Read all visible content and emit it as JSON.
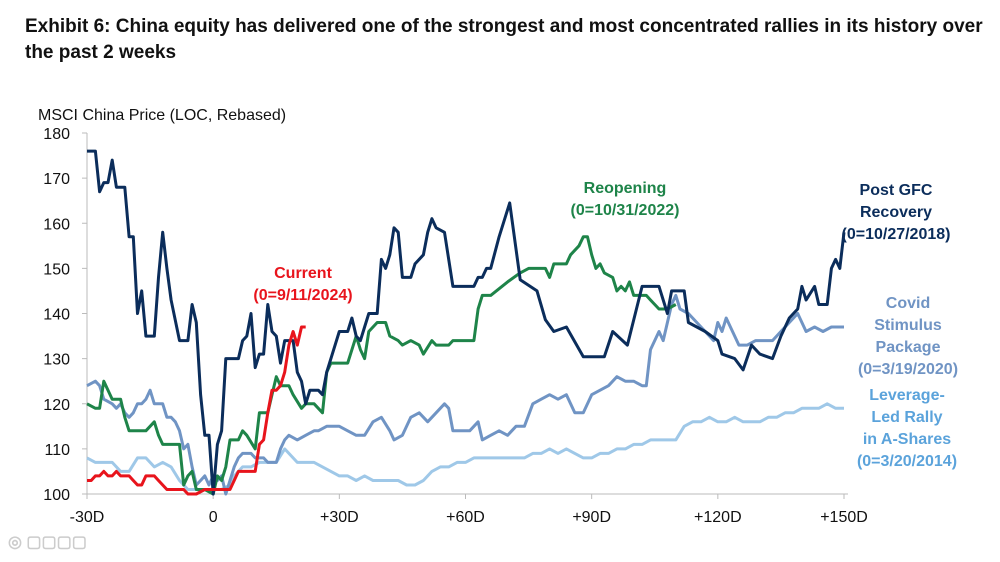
{
  "watermark": "大数跨境",
  "chart_data": {
    "type": "line",
    "title": "Exhibit 6: China equity has delivered one of the strongest and most concentrated rallies in its history over the past 2 weeks",
    "ylabel": "MSCI China Price (LOC, Rebased)",
    "xlabel": "",
    "xlim": [
      -30,
      150
    ],
    "ylim": [
      100,
      180
    ],
    "xticks": [
      -30,
      0,
      30,
      60,
      90,
      120,
      150
    ],
    "xtick_labels": [
      "-30D",
      "0",
      "+30D",
      "+60D",
      "+90D",
      "+120D",
      "+150D"
    ],
    "yticks": [
      100,
      110,
      120,
      130,
      140,
      150,
      160,
      170,
      180
    ],
    "grid": false,
    "series": [
      {
        "name": "Leverage-Led Rally in A-Shares",
        "label_lines": [
          "Leverage-",
          "Led Rally",
          "in A-Shares",
          "(0=3/20/2014)"
        ],
        "color": "#9fc8e8",
        "x": [
          -30,
          -28,
          -26,
          -24,
          -22,
          -20,
          -18,
          -16,
          -14,
          -12,
          -10,
          -8,
          -6,
          -4,
          -2,
          0,
          2,
          4,
          5,
          7,
          9,
          11,
          13,
          15,
          17,
          18,
          20,
          22,
          24,
          26,
          28,
          30,
          32,
          34,
          36,
          38,
          40,
          42,
          44,
          46,
          48,
          50,
          52,
          54,
          56,
          58,
          60,
          62,
          64,
          66,
          68,
          70,
          72,
          74,
          76,
          78,
          80,
          82,
          84,
          86,
          88,
          90,
          92,
          94,
          96,
          98,
          100,
          102,
          104,
          106,
          108,
          110,
          112,
          114,
          116,
          118,
          120,
          122,
          124,
          126,
          128,
          130,
          132,
          134,
          136,
          138,
          140,
          142,
          144,
          146,
          148,
          150
        ],
        "y": [
          108,
          107,
          107,
          107,
          105,
          105,
          108,
          108,
          106,
          107,
          106,
          103,
          101,
          101,
          101,
          101,
          101,
          102,
          104,
          106,
          106,
          107,
          107,
          107,
          110,
          109,
          107,
          107,
          107,
          106,
          105,
          104,
          104,
          103,
          104,
          103,
          103,
          103,
          103,
          102,
          102,
          103,
          105,
          106,
          106,
          107,
          107,
          108,
          108,
          108,
          108,
          108,
          108,
          108,
          109,
          109,
          110,
          109,
          110,
          109,
          108,
          108,
          109,
          109,
          110,
          110,
          111,
          111,
          112,
          112,
          112,
          112,
          115,
          116,
          116,
          117,
          116,
          116,
          117,
          116,
          116,
          116,
          117,
          117,
          118,
          118,
          119,
          119,
          119,
          120,
          119,
          119
        ]
      },
      {
        "name": "Covid Stimulus Package",
        "label_lines": [
          "Covid",
          "Stimulus",
          "Package",
          "(0=3/19/2020)"
        ],
        "color": "#7094c4",
        "x": [
          -30,
          -28,
          -27,
          -26,
          -24,
          -23,
          -22,
          -21,
          -20,
          -19,
          -18,
          -17,
          -16,
          -15,
          -14,
          -12,
          -11,
          -10,
          -9,
          -8,
          -7,
          -6,
          -5,
          -4,
          -3,
          -2,
          -1,
          0,
          1,
          2,
          3,
          4,
          5,
          6,
          7,
          9,
          10,
          11,
          12,
          13,
          15,
          16,
          17,
          18,
          20,
          22,
          24,
          25,
          27,
          30,
          32,
          34,
          36,
          38,
          40,
          42,
          43,
          45,
          47,
          49,
          51,
          53,
          55,
          56,
          57,
          59,
          61,
          63,
          64,
          66,
          68,
          70,
          72,
          74,
          76,
          78,
          80,
          82,
          84,
          86,
          88,
          90,
          92,
          94,
          96,
          98,
          100,
          102,
          103,
          104,
          106,
          107,
          109,
          110,
          111,
          113,
          115,
          117,
          119,
          120,
          121,
          122,
          124,
          125,
          127,
          129,
          131,
          133,
          135,
          137,
          139,
          141,
          143,
          145,
          147,
          150
        ],
        "y": [
          124,
          125,
          124,
          121,
          120,
          119,
          120,
          118,
          117,
          118,
          120,
          120,
          121,
          123,
          120,
          120,
          117,
          117,
          116,
          114,
          110,
          111,
          106,
          102,
          103,
          104,
          102,
          104,
          103,
          104,
          100,
          103,
          106,
          108,
          109,
          109,
          108,
          108,
          108,
          107,
          107,
          110,
          112,
          113,
          112,
          113,
          114,
          114,
          115,
          115,
          114,
          113,
          113,
          116,
          117,
          114,
          112,
          113,
          117,
          118,
          116,
          118,
          120,
          119,
          114,
          114,
          114,
          116,
          112,
          113,
          114,
          113,
          115,
          115,
          120,
          121,
          122,
          121,
          122,
          118,
          118,
          122,
          123,
          124,
          126,
          125,
          125,
          124,
          124,
          132,
          136,
          134,
          142,
          144,
          141,
          140,
          138,
          136,
          134,
          138,
          136,
          139,
          135,
          133,
          133,
          134,
          134,
          134,
          136,
          138,
          140,
          136,
          137,
          136,
          137,
          137
        ]
      },
      {
        "name": "Reopening",
        "label_lines": [
          "Reopening",
          "(0=10/31/2022)"
        ],
        "color": "#1e8449",
        "x": [
          -30,
          -28,
          -27,
          -26,
          -25,
          -24,
          -22,
          -21,
          -20,
          -19,
          -16,
          -14,
          -13,
          -12,
          -10,
          -8,
          -7,
          -6,
          -5,
          -4,
          -2,
          0,
          1,
          2,
          3,
          4,
          6,
          7,
          8,
          10,
          11,
          13,
          14,
          15,
          16,
          18,
          19,
          21,
          22,
          24,
          26,
          27,
          28,
          30,
          32,
          34,
          35,
          36,
          37,
          39,
          41,
          42,
          44,
          45,
          47,
          49,
          50,
          52,
          53,
          56,
          57,
          60,
          62,
          63,
          64,
          66,
          70,
          73,
          75,
          79,
          80,
          81,
          84,
          85,
          87,
          88,
          89,
          90,
          91,
          92,
          93,
          95,
          96,
          97,
          98,
          99,
          100,
          101,
          103,
          104,
          106,
          108,
          110
        ],
        "y": [
          120,
          119,
          119,
          125,
          123,
          121,
          121,
          117,
          114,
          114,
          114,
          116,
          113,
          111,
          111,
          111,
          102,
          104,
          105,
          101,
          101,
          100,
          104,
          103,
          106,
          112,
          112,
          114,
          113,
          110,
          118,
          118,
          122,
          126,
          124,
          124,
          122,
          119,
          120,
          120,
          118,
          127,
          129,
          129,
          129,
          135,
          132,
          130,
          136,
          138,
          138,
          135,
          134,
          133,
          134,
          133,
          131,
          134,
          133,
          133,
          134,
          134,
          134,
          141,
          144,
          144,
          147,
          149,
          150,
          150,
          148,
          151,
          151,
          153,
          155,
          157,
          157,
          153,
          150,
          151,
          149,
          148,
          145,
          146,
          145,
          147,
          144,
          144,
          144,
          143,
          141,
          141,
          142
        ]
      },
      {
        "name": "Post GFC Recovery",
        "label_lines": [
          "Post GFC",
          "Recovery",
          "(0=10/27/2018)"
        ],
        "color": "#0b2d5b",
        "x": [
          -30,
          -28,
          -27,
          -26,
          -25,
          -24,
          -23,
          -21,
          -20,
          -19,
          -18,
          -17,
          -16,
          -14,
          -13,
          -12,
          -11,
          -10,
          -8,
          -6,
          -5,
          -4,
          -3,
          -2,
          -1,
          0,
          1,
          2,
          3,
          4,
          6,
          7,
          8,
          9,
          10,
          11,
          12,
          13,
          14,
          15,
          16,
          17,
          19,
          20,
          21,
          22,
          23,
          25,
          26,
          27,
          29,
          30,
          32,
          33,
          34,
          35,
          36,
          37,
          39,
          40,
          41,
          42,
          43,
          44,
          45,
          47,
          48,
          50,
          51,
          52,
          53,
          55,
          57,
          62,
          63,
          64,
          65,
          66,
          68,
          70.5,
          73,
          77,
          79,
          81,
          84,
          88,
          93,
          95,
          98.5,
          102,
          106,
          108,
          109,
          112,
          113,
          117,
          120,
          121,
          124,
          126,
          128,
          130,
          133,
          135,
          137,
          139,
          140,
          141,
          143,
          144,
          146,
          147,
          148,
          149,
          150
        ],
        "y": [
          176,
          176,
          167,
          169,
          169,
          174,
          168,
          168,
          157,
          157,
          140,
          145,
          135,
          135,
          148,
          158,
          150,
          143,
          134,
          134,
          142,
          138,
          122,
          113,
          113,
          100,
          111,
          114,
          130,
          130,
          130,
          134,
          135,
          140,
          128,
          131,
          131,
          142,
          136,
          135,
          129,
          134,
          134,
          127,
          125,
          120,
          123,
          123,
          122,
          127,
          133,
          136,
          136,
          139,
          135,
          134,
          137,
          140,
          140,
          152,
          150,
          153,
          159,
          158,
          148,
          148,
          151,
          153,
          158,
          161,
          159,
          158,
          146,
          146,
          148,
          148,
          150,
          150,
          157,
          164.5,
          147.5,
          145,
          138.6,
          136,
          137,
          130.4,
          130.4,
          136,
          133,
          146,
          146,
          140,
          145,
          145,
          138,
          136,
          134,
          131,
          130,
          127.5,
          133,
          131,
          130,
          135,
          139,
          141,
          146,
          143,
          146,
          142,
          142,
          150,
          152,
          150,
          158
        ]
      },
      {
        "name": "Current",
        "label_lines": [
          "Current",
          "(0=9/11/2024)"
        ],
        "color": "#e8141c",
        "x": [
          -30,
          -29,
          -28,
          -27,
          -26,
          -25,
          -24,
          -23,
          -22,
          -20,
          -19,
          -18,
          -17,
          -16,
          -14,
          -13,
          -12,
          -11,
          -10,
          -8,
          -7,
          -6,
          -4,
          -2,
          0,
          2,
          4,
          5,
          6,
          8,
          10,
          11,
          12,
          13,
          14,
          15,
          16,
          17,
          18,
          19,
          20,
          21,
          22
        ],
        "y": [
          103,
          103,
          104,
          104,
          105,
          104,
          104,
          105,
          104,
          104,
          103,
          102,
          102,
          104,
          104,
          103,
          102,
          101,
          101,
          101,
          101,
          100,
          100,
          101,
          101,
          101,
          101,
          103,
          105,
          105,
          105,
          111,
          112,
          118,
          123,
          123,
          124,
          127,
          133,
          136,
          133,
          137,
          137
        ]
      }
    ]
  }
}
